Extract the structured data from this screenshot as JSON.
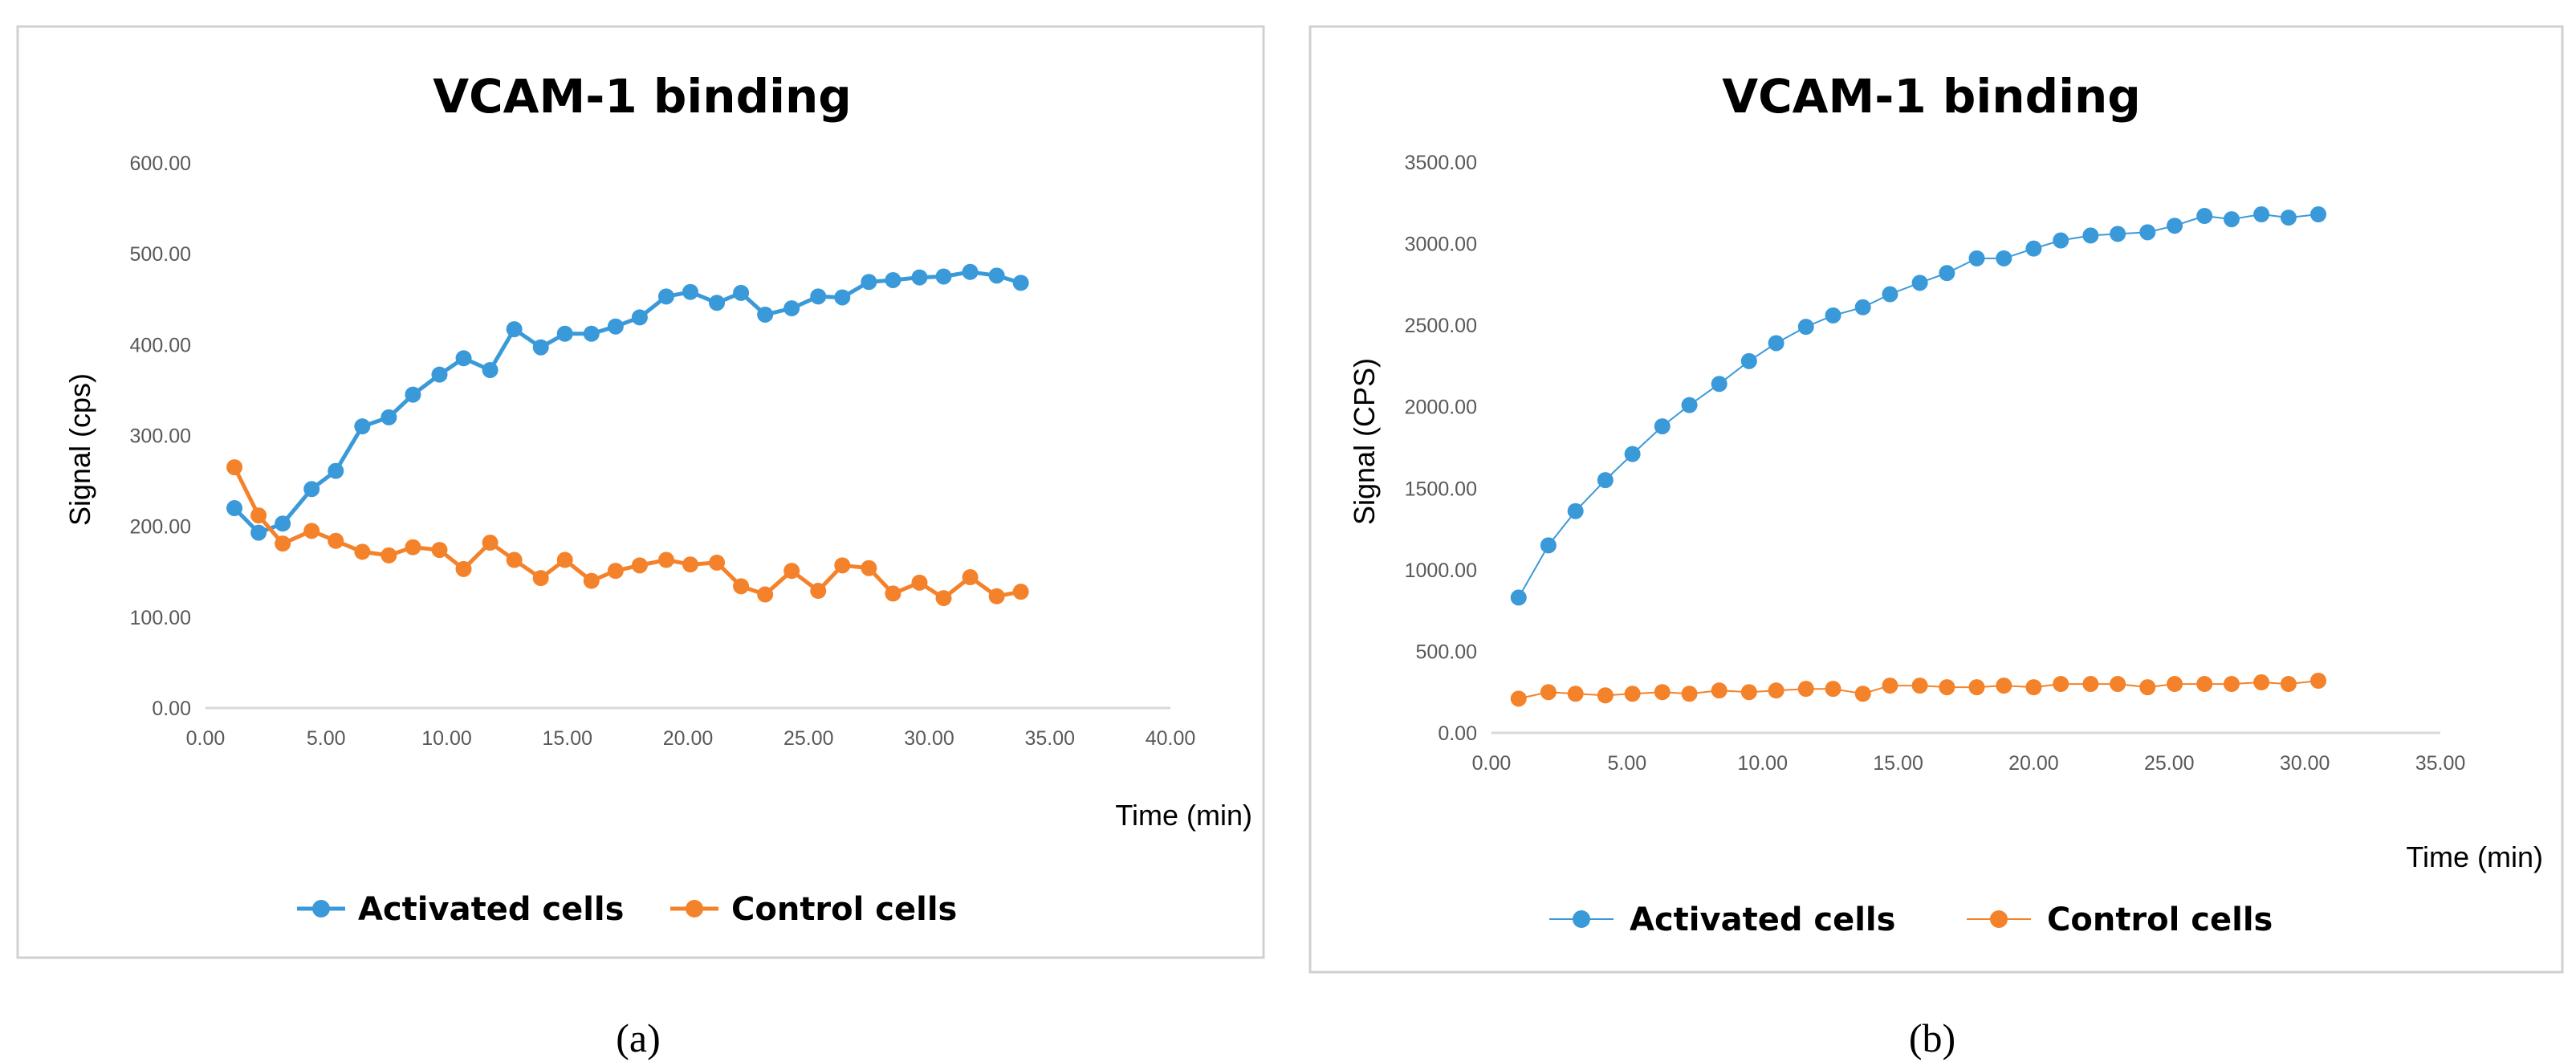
{
  "chart_data": [
    {
      "type": "line",
      "title": "VCAM-1 binding",
      "xlabel": "Time (min)",
      "ylabel": "Signal (cps)",
      "xlim": [
        0,
        40
      ],
      "ylim": [
        0,
        600
      ],
      "x_ticks": [
        "0.00",
        "5.00",
        "10.00",
        "15.00",
        "20.00",
        "25.00",
        "30.00",
        "35.00",
        "40.00"
      ],
      "y_ticks": [
        "0.00",
        "100.00",
        "200.00",
        "300.00",
        "400.00",
        "500.00",
        "600.00"
      ],
      "legend_position": "bottom",
      "caption": "(a)",
      "series": [
        {
          "name": "Activated cells",
          "color": "#3a9ad9",
          "show_lines": true,
          "x": [
            1.2,
            2.2,
            3.2,
            4.4,
            5.4,
            6.5,
            7.6,
            8.6,
            9.7,
            10.7,
            11.8,
            12.8,
            13.9,
            14.9,
            16.0,
            17.0,
            18.0,
            19.1,
            20.1,
            21.2,
            22.2,
            23.2,
            24.3,
            25.4,
            26.4,
            27.5,
            28.5,
            29.6,
            30.6,
            31.7,
            32.8,
            33.8
          ],
          "y": [
            220,
            193,
            203,
            241,
            261,
            310,
            320,
            345,
            367,
            385,
            372,
            417,
            397,
            412,
            412,
            420,
            430,
            453,
            458,
            446,
            457,
            433,
            440,
            453,
            452,
            469,
            471,
            474,
            475,
            480,
            476,
            468
          ]
        },
        {
          "name": "Control cells",
          "color": "#f4822a",
          "show_lines": true,
          "x": [
            1.2,
            2.2,
            3.2,
            4.4,
            5.4,
            6.5,
            7.6,
            8.6,
            9.7,
            10.7,
            11.8,
            12.8,
            13.9,
            14.9,
            16.0,
            17.0,
            18.0,
            19.1,
            20.1,
            21.2,
            22.2,
            23.2,
            24.3,
            25.4,
            26.4,
            27.5,
            28.5,
            29.6,
            30.6,
            31.7,
            32.8,
            33.8
          ],
          "y": [
            265,
            212,
            181,
            195,
            184,
            172,
            168,
            177,
            174,
            153,
            182,
            163,
            143,
            163,
            140,
            151,
            157,
            163,
            158,
            160,
            134,
            125,
            151,
            129,
            157,
            154,
            126,
            138,
            121,
            144,
            123,
            128
          ]
        }
      ]
    },
    {
      "type": "scatter",
      "title": "VCAM-1 binding",
      "xlabel": "Time (min)",
      "ylabel": "Signal (CPS)",
      "xlim": [
        0,
        35
      ],
      "ylim": [
        0,
        3500
      ],
      "x_ticks": [
        "0.00",
        "5.00",
        "10.00",
        "15.00",
        "20.00",
        "25.00",
        "30.00",
        "35.00"
      ],
      "y_ticks": [
        "0.00",
        "500.00",
        "1000.00",
        "1500.00",
        "2000.00",
        "2500.00",
        "3000.00",
        "3500.00"
      ],
      "legend_position": "bottom",
      "caption": "(b)",
      "series": [
        {
          "name": "Activated cells",
          "color": "#3a9ad9",
          "show_lines": true,
          "x": [
            1.0,
            2.1,
            3.1,
            4.2,
            5.2,
            6.3,
            7.3,
            8.4,
            9.5,
            10.5,
            11.6,
            12.6,
            13.7,
            14.7,
            15.8,
            16.8,
            17.9,
            18.9,
            20.0,
            21.0,
            22.1,
            23.1,
            24.2,
            25.2,
            26.3,
            27.3,
            28.4,
            29.4,
            30.5
          ],
          "y": [
            830,
            1150,
            1360,
            1550,
            1710,
            1880,
            2010,
            2140,
            2280,
            2390,
            2490,
            2560,
            2610,
            2690,
            2760,
            2820,
            2910,
            2910,
            2970,
            3020,
            3050,
            3060,
            3070,
            3110,
            3170,
            3150,
            3180,
            3160,
            3180
          ]
        },
        {
          "name": "Control cells",
          "color": "#f4822a",
          "show_lines": true,
          "x": [
            1.0,
            2.1,
            3.1,
            4.2,
            5.2,
            6.3,
            7.3,
            8.4,
            9.5,
            10.5,
            11.6,
            12.6,
            13.7,
            14.7,
            15.8,
            16.8,
            17.9,
            18.9,
            20.0,
            21.0,
            22.1,
            23.1,
            24.2,
            25.2,
            26.3,
            27.3,
            28.4,
            29.4,
            30.5
          ],
          "y": [
            210,
            250,
            240,
            230,
            240,
            250,
            240,
            260,
            250,
            260,
            270,
            270,
            240,
            290,
            290,
            280,
            280,
            290,
            280,
            300,
            300,
            300,
            280,
            300,
            300,
            300,
            310,
            300,
            320
          ]
        }
      ]
    }
  ]
}
